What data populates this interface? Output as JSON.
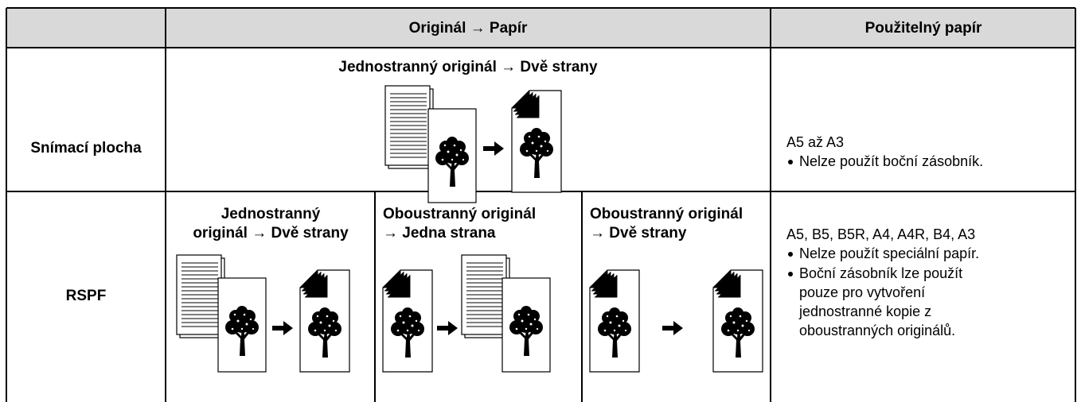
{
  "table": {
    "header": {
      "mode": "Originál → Papír",
      "paper": "Použitelný papír"
    },
    "rows": [
      {
        "label": "Snímací plocha",
        "modes": [
          {
            "title": [
              "Jednostranný originál → Dvě strany"
            ]
          }
        ],
        "paper": "A5 až A3",
        "notes": [
          [
            "Nelze použít boční zásobník."
          ]
        ]
      },
      {
        "label": "RSPF",
        "modes": [
          {
            "title": [
              "Jednostranný",
              "originál → Dvě strany"
            ]
          },
          {
            "title": [
              "Oboustranný originál",
              "→ Jedna strana"
            ]
          },
          {
            "title": [
              "Oboustranný originál",
              "→ Dvě strany"
            ]
          }
        ],
        "paper": "A5, B5, B5R, A4, A4R, B4, A3",
        "notes": [
          [
            "Nelze použít speciální papír."
          ],
          [
            "Boční zásobník lze použít",
            "pouze pro vytvoření",
            "jednostranné kopie z",
            "oboustranných originálů."
          ]
        ]
      }
    ]
  }
}
